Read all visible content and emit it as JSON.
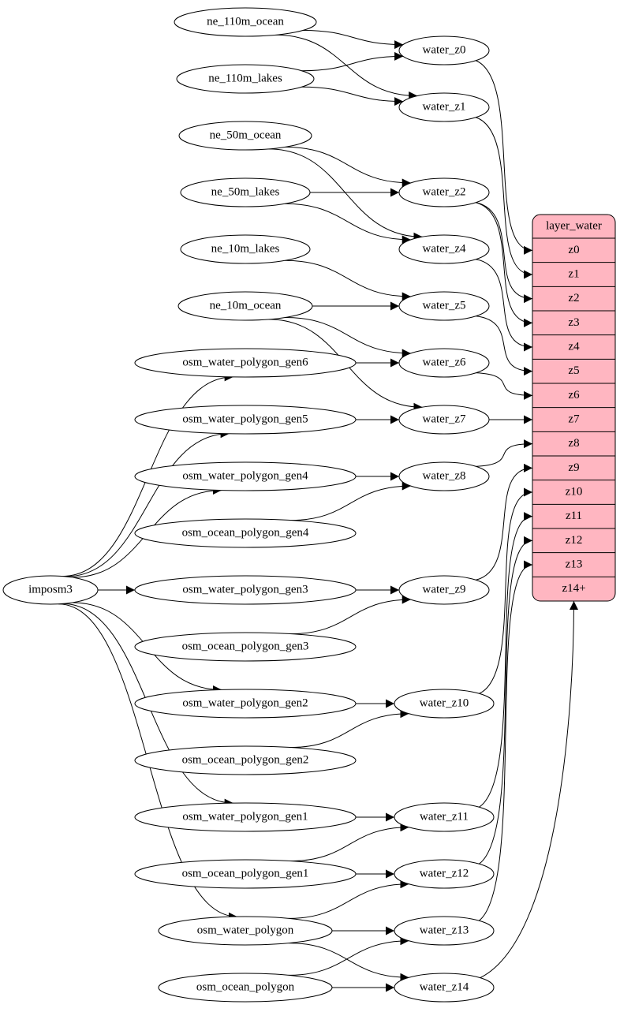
{
  "nodes": [
    {
      "label": "ne_110m_ocean"
    },
    {
      "label": "ne_110m_lakes"
    },
    {
      "label": "ne_50m_ocean"
    },
    {
      "label": "ne_50m_lakes"
    },
    {
      "label": "ne_10m_lakes"
    },
    {
      "label": "ne_10m_ocean"
    },
    {
      "label": "osm_water_polygon_gen6"
    },
    {
      "label": "osm_water_polygon_gen5"
    },
    {
      "label": "osm_water_polygon_gen4"
    },
    {
      "label": "osm_ocean_polygon_gen4"
    },
    {
      "label": "osm_water_polygon_gen3"
    },
    {
      "label": "osm_ocean_polygon_gen3"
    },
    {
      "label": "osm_water_polygon_gen2"
    },
    {
      "label": "osm_ocean_polygon_gen2"
    },
    {
      "label": "osm_water_polygon_gen1"
    },
    {
      "label": "osm_ocean_polygon_gen1"
    },
    {
      "label": "osm_water_polygon"
    },
    {
      "label": "osm_ocean_polygon"
    },
    {
      "label": "imposm3"
    },
    {
      "label": "water_z0"
    },
    {
      "label": "water_z1"
    },
    {
      "label": "water_z2"
    },
    {
      "label": "water_z4"
    },
    {
      "label": "water_z5"
    },
    {
      "label": "water_z6"
    },
    {
      "label": "water_z7"
    },
    {
      "label": "water_z8"
    },
    {
      "label": "water_z9"
    },
    {
      "label": "water_z10"
    },
    {
      "label": "water_z11"
    },
    {
      "label": "water_z12"
    },
    {
      "label": "water_z13"
    },
    {
      "label": "water_z14"
    }
  ],
  "layer_water": {
    "title": "layer_water",
    "fields": [
      "z0",
      "z1",
      "z2",
      "z3",
      "z4",
      "z5",
      "z6",
      "z7",
      "z8",
      "z9",
      "z10",
      "z11",
      "z12",
      "z13",
      "z14+"
    ]
  }
}
